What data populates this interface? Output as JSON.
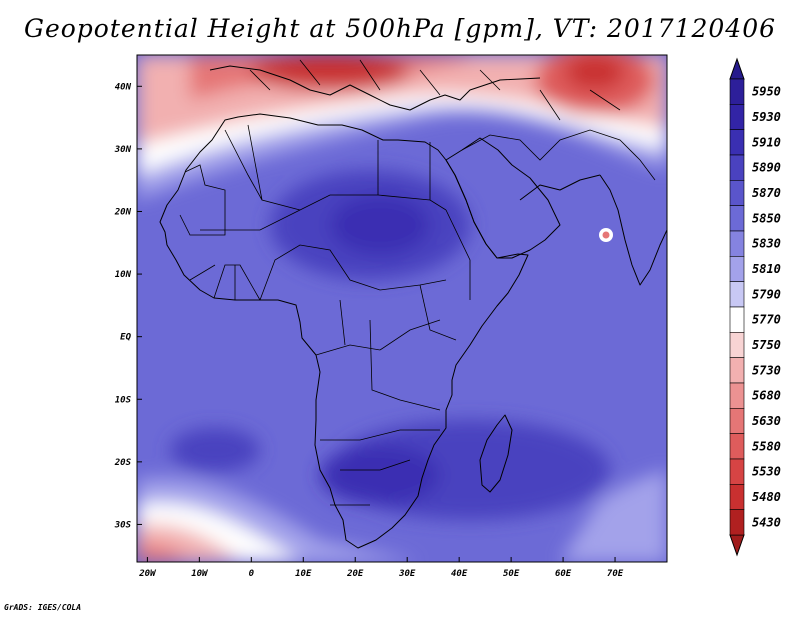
{
  "title": "Geopotential Height at 500hPa [gpm], VT: 2017120406",
  "credit": "GrADS: IGES/COLA",
  "map": {
    "projection": "latlon",
    "lon_range": [
      -22,
      80
    ],
    "lat_range": [
      -36,
      45
    ],
    "lon_ticks": [
      {
        "value": -20,
        "label": "20W"
      },
      {
        "value": -10,
        "label": "10W"
      },
      {
        "value": 0,
        "label": "0"
      },
      {
        "value": 10,
        "label": "10E"
      },
      {
        "value": 20,
        "label": "20E"
      },
      {
        "value": 30,
        "label": "30E"
      },
      {
        "value": 40,
        "label": "40E"
      },
      {
        "value": 50,
        "label": "50E"
      },
      {
        "value": 60,
        "label": "60E"
      },
      {
        "value": 70,
        "label": "70E"
      }
    ],
    "lat_ticks": [
      {
        "value": 40,
        "label": "40N"
      },
      {
        "value": 30,
        "label": "30N"
      },
      {
        "value": 20,
        "label": "20N"
      },
      {
        "value": 10,
        "label": "10N"
      },
      {
        "value": 0,
        "label": "EQ"
      },
      {
        "value": -10,
        "label": "10S"
      },
      {
        "value": -20,
        "label": "20S"
      },
      {
        "value": -30,
        "label": "30S"
      }
    ]
  },
  "colorbar": {
    "levels": [
      {
        "label": "5950",
        "color": "#2d1f9a"
      },
      {
        "label": "5930",
        "color": "#3224a6"
      },
      {
        "label": "5910",
        "color": "#3a2fb2"
      },
      {
        "label": "5890",
        "color": "#4a42bf"
      },
      {
        "label": "5870",
        "color": "#5a55cb"
      },
      {
        "label": "5850",
        "color": "#6c6ad6"
      },
      {
        "label": "5830",
        "color": "#8583e0"
      },
      {
        "label": "5810",
        "color": "#a3a2ea"
      },
      {
        "label": "5790",
        "color": "#c8c8f4"
      },
      {
        "label": "5770",
        "color": "#ffffff"
      },
      {
        "label": "5750",
        "color": "#f8d4d4"
      },
      {
        "label": "5730",
        "color": "#f2b0b0"
      },
      {
        "label": "5680",
        "color": "#ec9292"
      },
      {
        "label": "5630",
        "color": "#e57676"
      },
      {
        "label": "5580",
        "color": "#de5c5c"
      },
      {
        "label": "5530",
        "color": "#d64444"
      },
      {
        "label": "5480",
        "color": "#c93030"
      },
      {
        "label": "5430",
        "color": "#b02020"
      }
    ],
    "top_arrow_color": "#261a8c",
    "bottom_arrow_color": "#a01c1c"
  }
}
